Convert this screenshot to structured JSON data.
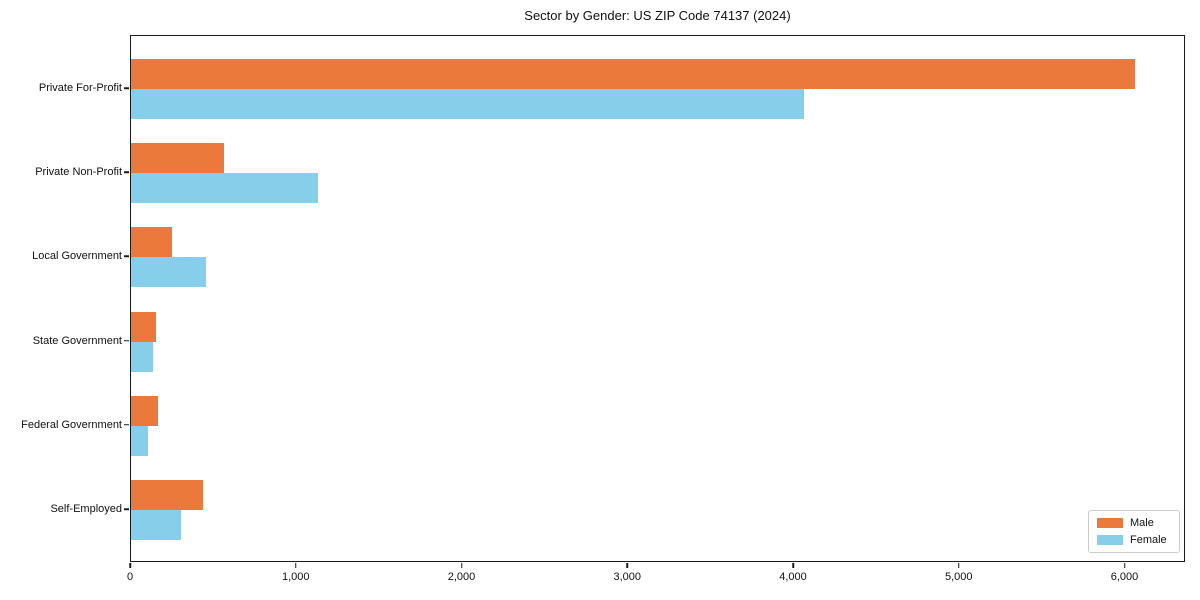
{
  "chart_data": {
    "type": "bar",
    "orientation": "horizontal",
    "title": "Sector by Gender: US ZIP Code 74137 (2024)",
    "categories": [
      "Private For-Profit",
      "Private Non-Profit",
      "Local Government",
      "State Government",
      "Federal Government",
      "Self-Employed"
    ],
    "series": [
      {
        "name": "Male",
        "color": "#EC793C",
        "values": [
          6060,
          560,
          245,
          150,
          165,
          435
        ]
      },
      {
        "name": "Female",
        "color": "#87CEEB",
        "values": [
          4060,
          1130,
          455,
          135,
          100,
          300
        ]
      }
    ],
    "xlabel": "",
    "ylabel": "",
    "xlim": [
      0,
      6365
    ],
    "xticks": [
      0,
      1000,
      2000,
      3000,
      4000,
      5000,
      6000
    ],
    "xtick_labels": [
      "0",
      "1,000",
      "2,000",
      "3,000",
      "4,000",
      "5,000",
      "6,000"
    ],
    "grid": false,
    "legend_position": "lower right"
  },
  "legend": {
    "male_label": "Male",
    "female_label": "Female"
  }
}
